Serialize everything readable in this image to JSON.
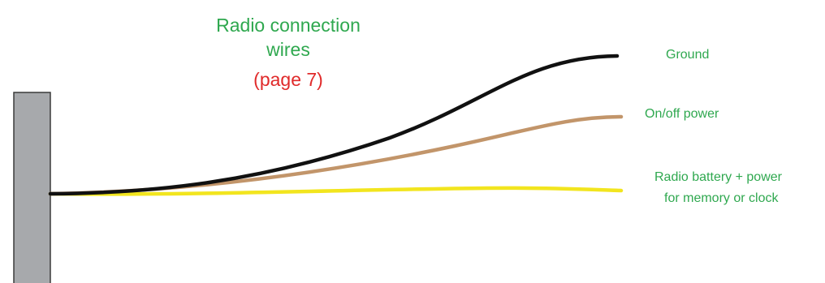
{
  "title": {
    "line1": "Radio connection",
    "line2": "wires",
    "page_ref": "(page 7)"
  },
  "wires": [
    {
      "id": "ground",
      "color": "#111111",
      "label_lines": [
        "Ground"
      ]
    },
    {
      "id": "onoff",
      "color": "#c2956a",
      "label_lines": [
        "On/off power"
      ]
    },
    {
      "id": "battery",
      "color": "#f2e51e",
      "label_lines": [
        "Radio battery + power",
        "for memory or clock"
      ]
    }
  ],
  "colors": {
    "title": "#2fa84f",
    "page_ref": "#e02a2a",
    "label": "#2fa84f",
    "connector_fill": "#a7a9ac",
    "connector_stroke": "#3a3a3a"
  }
}
